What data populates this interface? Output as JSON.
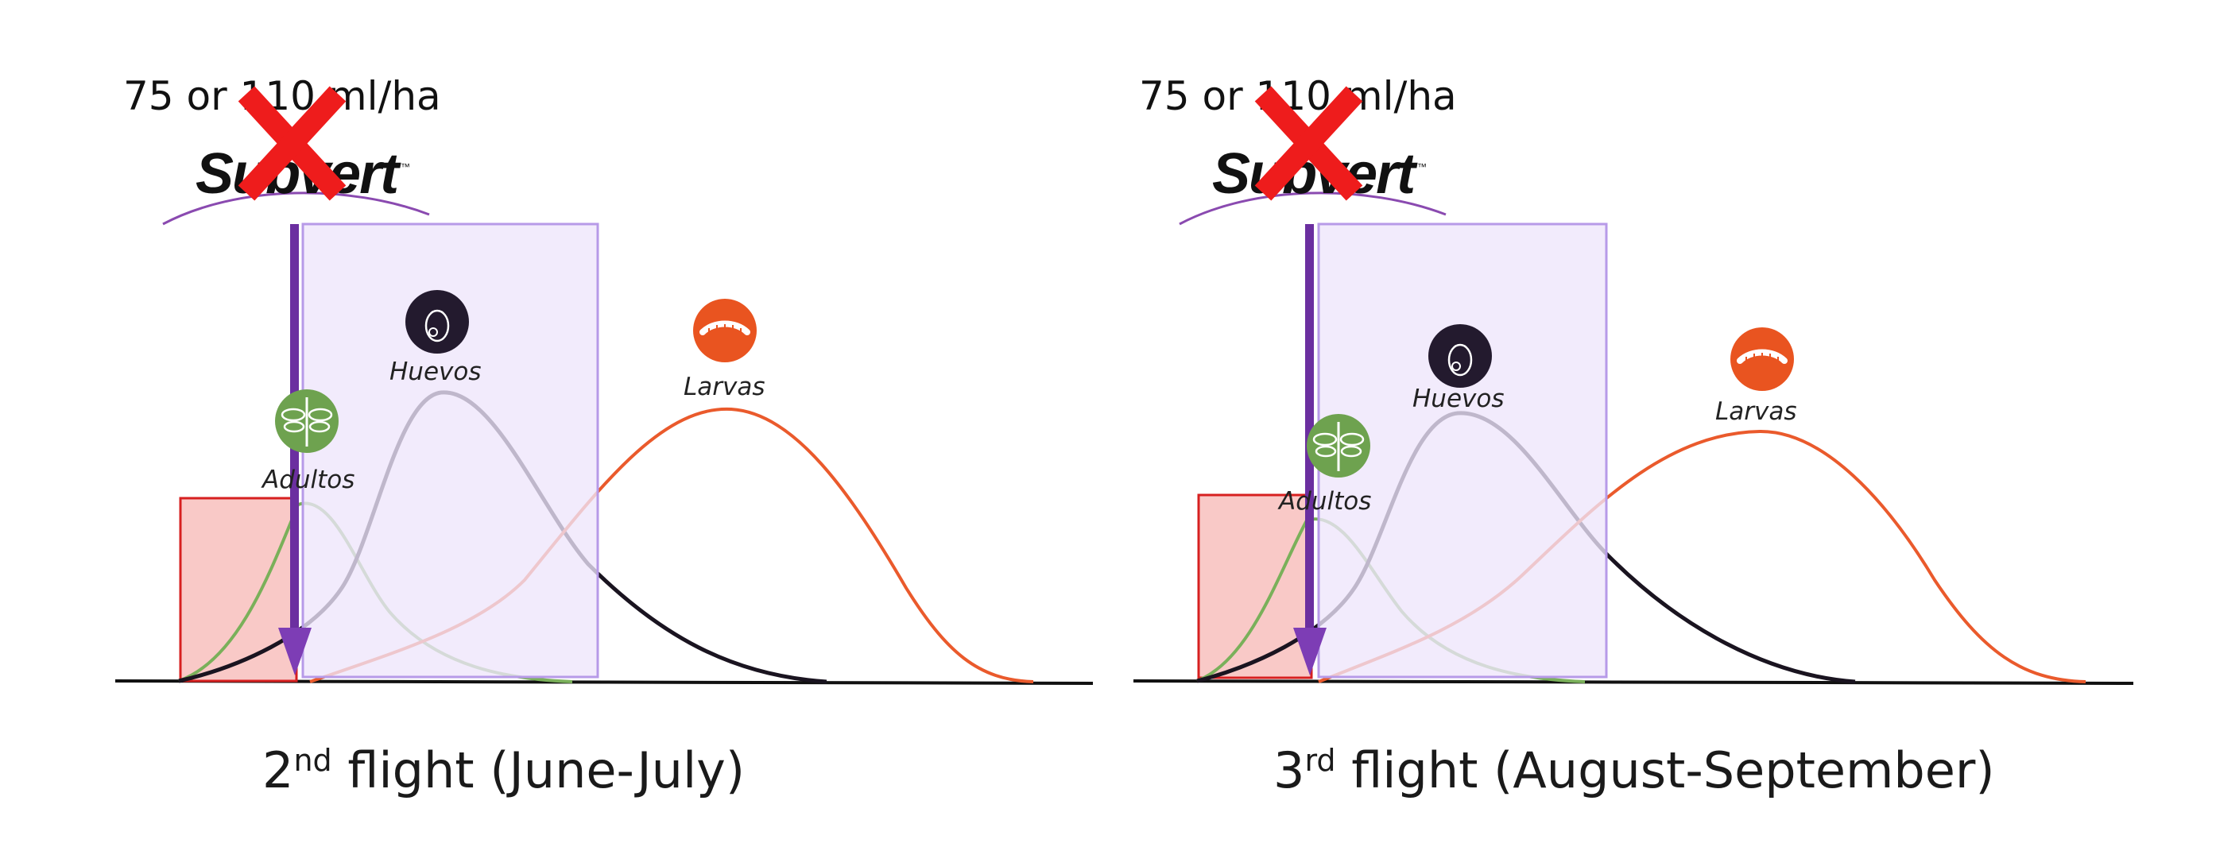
{
  "panels": [
    {
      "dose": "75 or 110 ml/ha",
      "brand": "Subvert",
      "trademark": "™",
      "stages": {
        "adults": "Adultos",
        "eggs": "Huevos",
        "larvae": "Larvas"
      },
      "caption": {
        "ordinal": "2",
        "suffix": "nd",
        "rest": " flight (June-July)"
      }
    },
    {
      "dose": "75 or 110 ml/ha",
      "brand": "Subvert",
      "trademark": "™",
      "stages": {
        "adults": "Adultos",
        "eggs": "Huevos",
        "larvae": "Larvas"
      },
      "caption": {
        "ordinal": "3",
        "suffix": "rd",
        "rest": " flight (August-September)"
      }
    }
  ],
  "colors": {
    "adults_curve": "#7ab05a",
    "eggs_curve": "#1a1420",
    "larvae_curve": "#ea5a2c",
    "baseline": "#111111",
    "treatment_window_fill": "#eee5fb",
    "treatment_window_border": "#b79ae8",
    "early_window_fill": "#f9c9c7",
    "early_window_border": "#d72020",
    "application_arrow": "#6b2fa0",
    "brand_arc": "#8a4ab0",
    "cross_mark": "#ee1c1c",
    "adult_icon_bg": "#6ea24f",
    "egg_icon_bg": "#231a2e",
    "larva_icon_bg": "#e95420"
  },
  "icons": [
    "cross-mark-icon",
    "dragonfly-icon",
    "egg-icon",
    "larva-icon",
    "arrow-down-icon"
  ]
}
